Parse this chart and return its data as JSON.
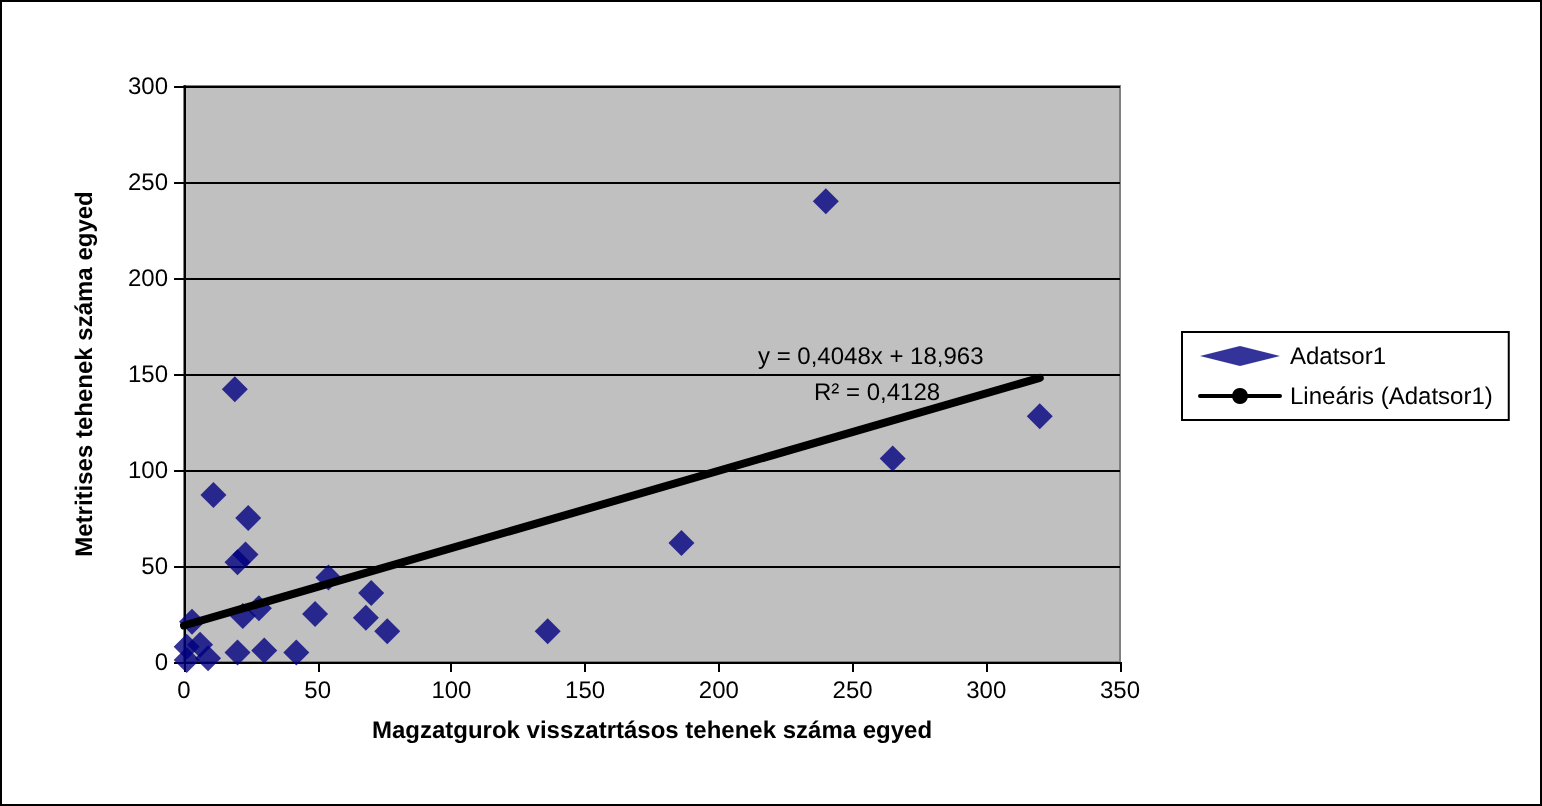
{
  "chart_data": {
    "type": "scatter",
    "xlabel": "Magzatgurok visszatrtásos tehenek száma egyed",
    "ylabel": "Metritises tehenek száma egyed",
    "x": [
      240,
      19,
      320,
      265,
      186,
      11,
      24,
      23,
      20,
      54,
      70,
      68,
      49,
      76,
      136,
      28,
      22,
      3,
      30,
      20,
      42,
      9,
      1,
      1,
      6
    ],
    "series": [
      {
        "name": "Adatsor1",
        "color": "#000080",
        "marker": "diamond",
        "values": [
          240,
          142,
          128,
          106,
          62,
          87,
          75,
          56,
          52,
          44,
          36,
          23,
          25,
          16,
          16,
          28,
          24,
          21,
          6,
          5,
          5,
          2,
          1,
          8,
          9
        ]
      },
      {
        "name": "Lineáris (Adatsor1)",
        "type": "line",
        "color": "#000000",
        "marker": "none",
        "line_style": "solid",
        "x": [
          0,
          320
        ],
        "values": [
          19,
          148
        ]
      }
    ],
    "annotations": [
      "y = 0,4048x + 18,963",
      "R² = 0,4128"
    ],
    "xlim": [
      0,
      350
    ],
    "xticks": [
      0,
      50,
      100,
      150,
      200,
      250,
      300,
      350
    ],
    "ylim": [
      0,
      300
    ],
    "yticks": [
      0,
      50,
      100,
      150,
      200,
      250,
      300
    ],
    "grid": "y",
    "legend": "right"
  }
}
